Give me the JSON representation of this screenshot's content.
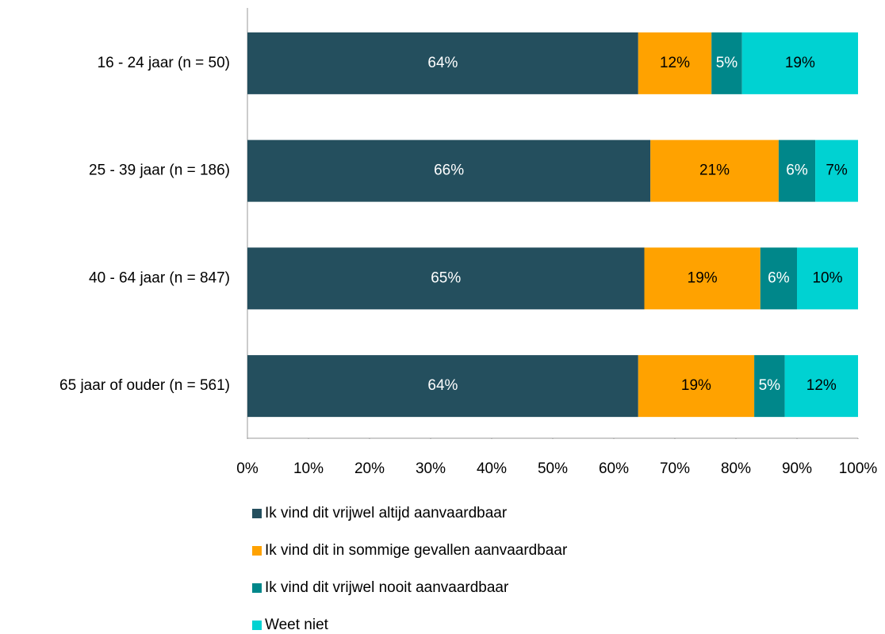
{
  "chart_data": {
    "type": "stacked_barh",
    "categories": [
      "16 - 24 jaar (n = 50)",
      "25 - 39 jaar (n = 186)",
      "40 - 64 jaar (n = 847)",
      "65 jaar of ouder (n = 561)"
    ],
    "series": [
      {
        "name": "Ik vind dit vrijwel altijd aanvaardbaar",
        "color": "#244f5e",
        "values": [
          64,
          66,
          65,
          64
        ],
        "value_labels": [
          "64%",
          "66%",
          "65%",
          "64%"
        ]
      },
      {
        "name": "Ik vind dit in sommige gevallen aanvaardbaar",
        "color": "#ffa200",
        "values": [
          12,
          21,
          19,
          19
        ],
        "value_labels": [
          "12%",
          "21%",
          "19%",
          "19%"
        ]
      },
      {
        "name": "Ik vind dit vrijwel nooit aanvaardbaar",
        "color": "#00878a",
        "values": [
          5,
          6,
          6,
          5
        ],
        "value_labels": [
          "5%",
          "6%",
          "6%",
          "5%"
        ]
      },
      {
        "name": "Weet niet",
        "color": "#00d2d2",
        "values": [
          19,
          7,
          10,
          12
        ],
        "value_labels": [
          "19%",
          "7%",
          "10%",
          "12%"
        ]
      }
    ],
    "xlim": [
      0,
      100
    ],
    "xticks": [
      {
        "value": 0,
        "label": "0%"
      },
      {
        "value": 10,
        "label": "10%"
      },
      {
        "value": 20,
        "label": "20%"
      },
      {
        "value": 30,
        "label": "30%"
      },
      {
        "value": 40,
        "label": "40%"
      },
      {
        "value": 50,
        "label": "50%"
      },
      {
        "value": 60,
        "label": "60%"
      },
      {
        "value": 70,
        "label": "70%"
      },
      {
        "value": 80,
        "label": "80%"
      },
      {
        "value": 90,
        "label": "90%"
      },
      {
        "value": 100,
        "label": "100%"
      }
    ],
    "legend": "bottom"
  }
}
